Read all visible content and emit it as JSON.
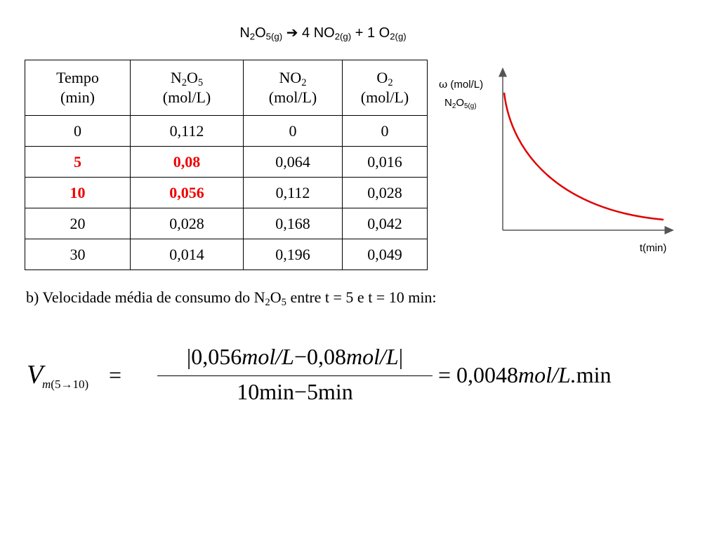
{
  "equation": {
    "reactant": "N",
    "reactant_sub1": "2",
    "reactant_mid": "O",
    "reactant_sub2": "5(g)",
    "arrow": "➔",
    "product1_coef": "4",
    "product1": "NO",
    "product1_sub": "2(g)",
    "plus": "+",
    "product2_coef": "1",
    "product2": "O",
    "product2_sub": "2(g)"
  },
  "table": {
    "headers": [
      {
        "line1_main": "Tempo",
        "line1_sub1": "",
        "line1_mid": "",
        "line1_sub2": "",
        "line2": "(min)"
      },
      {
        "line1_main": "N",
        "line1_sub1": "2",
        "line1_mid": "O",
        "line1_sub2": "5",
        "line2": "(mol/L)"
      },
      {
        "line1_main": "NO",
        "line1_sub1": "2",
        "line1_mid": "",
        "line1_sub2": "",
        "line2": "(mol/L)"
      },
      {
        "line1_main": "O",
        "line1_sub1": "2",
        "line1_mid": "",
        "line1_sub2": "",
        "line2": "(mol/L)"
      }
    ],
    "rows": [
      [
        "0",
        "0,112",
        "0",
        "0"
      ],
      [
        "5",
        "0,08",
        "0,064",
        "0,016"
      ],
      [
        "10",
        "0,056",
        "0,112",
        "0,028"
      ],
      [
        "20",
        "0,028",
        "0,168",
        "0,042"
      ],
      [
        "30",
        "0,014",
        "0,196",
        "0,049"
      ]
    ],
    "highlight_color": "#ee0000"
  },
  "graph": {
    "ylabel_symbol": "ω",
    "ylabel_unit": "(mol/L)",
    "ylabel_species_main": "N",
    "ylabel_species_sub1": "2",
    "ylabel_species_mid": "O",
    "ylabel_species_sub2": "5(g)",
    "xlabel": "t(min)",
    "curve_color": "#e00000"
  },
  "question": {
    "prefix": "b) Velocidade média de consumo do N",
    "sub1": "2",
    "mid": "O",
    "sub2": "5",
    "suffix": " entre t = 5 e t = 10 min:"
  },
  "formula": {
    "v_symbol": "V",
    "v_sub_m": "m",
    "v_sub_range": "(5→10)",
    "equals": "=",
    "numerator": {
      "bar_open": "|",
      "value1": "0,056",
      "unit1": "mol/L",
      "minus": "−",
      "value2": "0,08",
      "unit2": "mol/L",
      "bar_close": "|"
    },
    "denominator": {
      "value1": "10",
      "unit1": "min",
      "minus": "−",
      "value2": "5",
      "unit2": "min"
    },
    "result_value": "0,0048",
    "result_unit_it": "mol/L.",
    "result_unit": "min"
  }
}
